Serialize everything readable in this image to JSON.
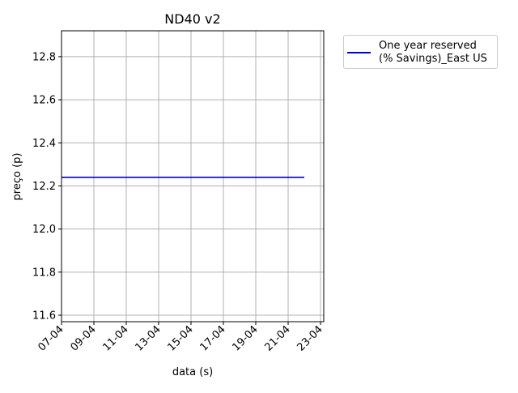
{
  "chart_data": {
    "type": "line",
    "title": "ND40 v2",
    "xlabel": "data (s)",
    "ylabel": "preço (p)",
    "x_tick_labels": [
      "07-04",
      "09-04",
      "11-04",
      "13-04",
      "15-04",
      "17-04",
      "19-04",
      "21-04",
      "23-04"
    ],
    "y_tick_labels": [
      "11.6",
      "11.8",
      "12.0",
      "12.2",
      "12.4",
      "12.6",
      "12.8"
    ],
    "y_ticks": [
      11.6,
      11.8,
      12.0,
      12.2,
      12.4,
      12.6,
      12.8
    ],
    "xlim": [
      "07-04",
      "23-04"
    ],
    "ylim": [
      11.57,
      12.92
    ],
    "grid": true,
    "legend_position": "upper right, outside plot",
    "series": [
      {
        "name": "One year reserved\n(% Savings)_East US",
        "color": "#0000cc",
        "x": [
          "07-04",
          "22-04"
        ],
        "y": [
          12.24,
          12.24
        ]
      }
    ]
  }
}
